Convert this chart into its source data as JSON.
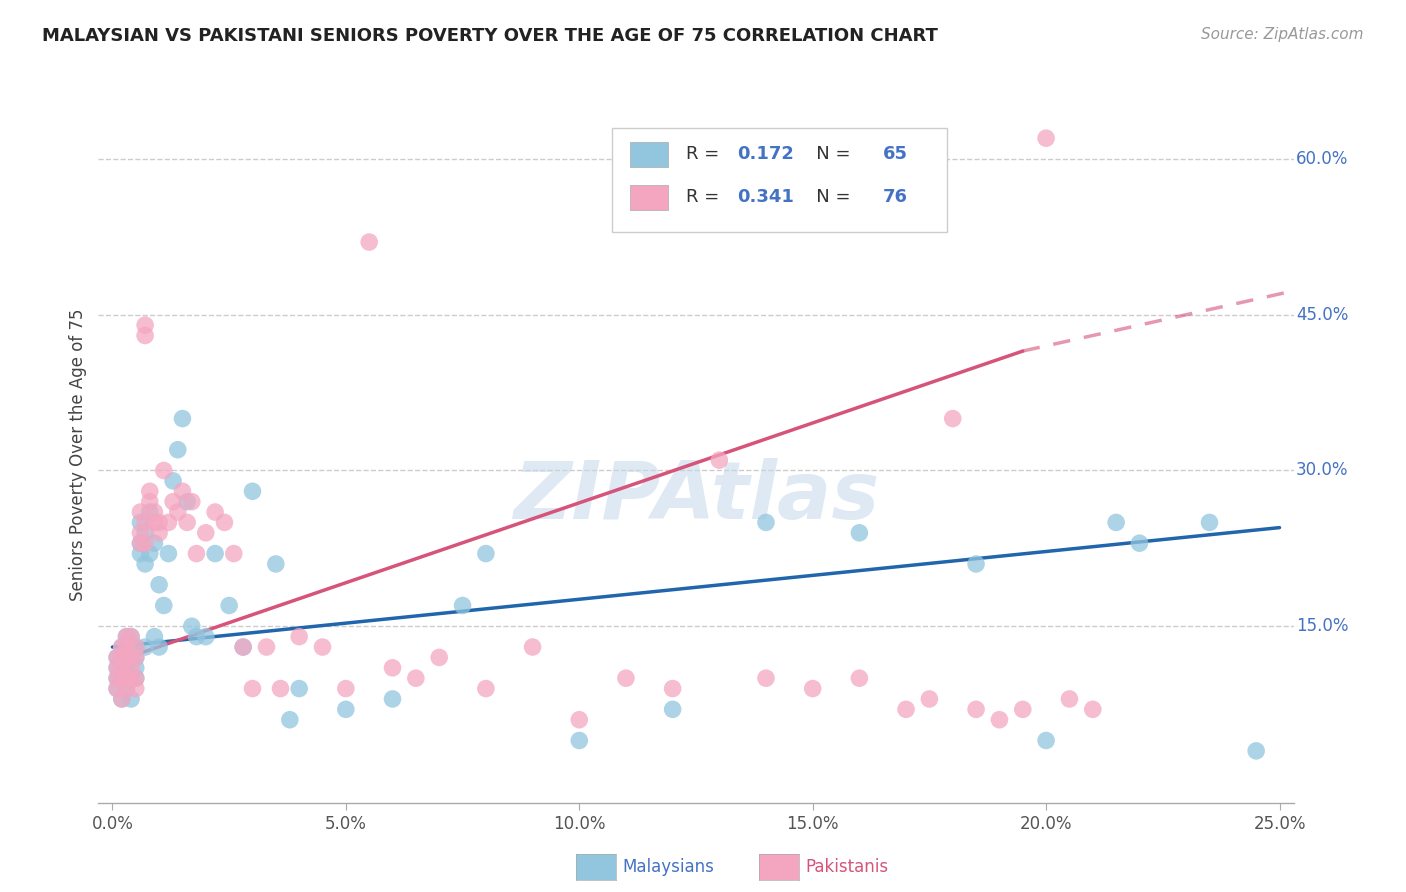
{
  "title": "MALAYSIAN VS PAKISTANI SENIORS POVERTY OVER THE AGE OF 75 CORRELATION CHART",
  "source": "Source: ZipAtlas.com",
  "ylabel": "Seniors Poverty Over the Age of 75",
  "xlim": [
    0.0,
    0.25
  ],
  "ylim": [
    -0.02,
    0.65
  ],
  "x_tick_vals": [
    0.0,
    0.05,
    0.1,
    0.15,
    0.2,
    0.25
  ],
  "x_tick_labels": [
    "0.0%",
    "5.0%",
    "10.0%",
    "15.0%",
    "20.0%",
    "25.0%"
  ],
  "y_tick_vals": [
    0.15,
    0.3,
    0.45,
    0.6
  ],
  "y_tick_labels": [
    "15.0%",
    "30.0%",
    "45.0%",
    "60.0%"
  ],
  "malaysian_R": "0.172",
  "malaysian_N": "65",
  "pakistani_R": "0.341",
  "pakistani_N": "76",
  "malaysian_color": "#92c5de",
  "pakistani_color": "#f4a6c0",
  "malaysian_line_color": "#2166ac",
  "pakistani_line_color": "#d6537a",
  "watermark": "ZIPAtlas",
  "background_color": "#ffffff",
  "legend_text_color": "#4472c4",
  "bottom_legend_mal_color": "#4472c4",
  "bottom_legend_pak_color": "#d6537a",
  "malaysian_x": [
    0.001,
    0.001,
    0.001,
    0.001,
    0.002,
    0.002,
    0.002,
    0.002,
    0.002,
    0.003,
    0.003,
    0.003,
    0.003,
    0.003,
    0.004,
    0.004,
    0.004,
    0.004,
    0.004,
    0.005,
    0.005,
    0.005,
    0.005,
    0.006,
    0.006,
    0.006,
    0.007,
    0.007,
    0.007,
    0.008,
    0.008,
    0.009,
    0.009,
    0.01,
    0.01,
    0.011,
    0.012,
    0.013,
    0.014,
    0.015,
    0.016,
    0.017,
    0.018,
    0.02,
    0.022,
    0.025,
    0.028,
    0.03,
    0.035,
    0.038,
    0.04,
    0.05,
    0.06,
    0.075,
    0.08,
    0.1,
    0.12,
    0.14,
    0.16,
    0.185,
    0.2,
    0.215,
    0.22,
    0.235,
    0.245
  ],
  "malaysian_y": [
    0.1,
    0.12,
    0.11,
    0.09,
    0.13,
    0.1,
    0.08,
    0.12,
    0.11,
    0.14,
    0.1,
    0.12,
    0.09,
    0.11,
    0.13,
    0.1,
    0.12,
    0.08,
    0.14,
    0.11,
    0.13,
    0.1,
    0.12,
    0.25,
    0.23,
    0.22,
    0.24,
    0.21,
    0.13,
    0.26,
    0.22,
    0.23,
    0.14,
    0.19,
    0.13,
    0.17,
    0.22,
    0.29,
    0.32,
    0.35,
    0.27,
    0.15,
    0.14,
    0.14,
    0.22,
    0.17,
    0.13,
    0.28,
    0.21,
    0.06,
    0.09,
    0.07,
    0.08,
    0.17,
    0.22,
    0.04,
    0.07,
    0.25,
    0.24,
    0.21,
    0.04,
    0.25,
    0.23,
    0.25,
    0.03
  ],
  "pakistani_x": [
    0.001,
    0.001,
    0.001,
    0.001,
    0.002,
    0.002,
    0.002,
    0.002,
    0.002,
    0.003,
    0.003,
    0.003,
    0.003,
    0.003,
    0.004,
    0.004,
    0.004,
    0.004,
    0.005,
    0.005,
    0.005,
    0.005,
    0.006,
    0.006,
    0.006,
    0.007,
    0.007,
    0.007,
    0.007,
    0.008,
    0.008,
    0.009,
    0.009,
    0.01,
    0.01,
    0.011,
    0.012,
    0.013,
    0.014,
    0.015,
    0.016,
    0.017,
    0.018,
    0.02,
    0.022,
    0.024,
    0.026,
    0.028,
    0.03,
    0.033,
    0.036,
    0.04,
    0.045,
    0.05,
    0.055,
    0.06,
    0.065,
    0.07,
    0.08,
    0.09,
    0.1,
    0.11,
    0.12,
    0.13,
    0.14,
    0.15,
    0.16,
    0.17,
    0.175,
    0.18,
    0.185,
    0.19,
    0.195,
    0.2,
    0.205,
    0.21
  ],
  "pakistani_y": [
    0.1,
    0.12,
    0.09,
    0.11,
    0.13,
    0.1,
    0.12,
    0.08,
    0.11,
    0.14,
    0.1,
    0.12,
    0.09,
    0.13,
    0.11,
    0.1,
    0.14,
    0.12,
    0.13,
    0.1,
    0.12,
    0.09,
    0.24,
    0.26,
    0.23,
    0.25,
    0.43,
    0.44,
    0.23,
    0.27,
    0.28,
    0.25,
    0.26,
    0.24,
    0.25,
    0.3,
    0.25,
    0.27,
    0.26,
    0.28,
    0.25,
    0.27,
    0.22,
    0.24,
    0.26,
    0.25,
    0.22,
    0.13,
    0.09,
    0.13,
    0.09,
    0.14,
    0.13,
    0.09,
    0.52,
    0.11,
    0.1,
    0.12,
    0.09,
    0.13,
    0.06,
    0.1,
    0.09,
    0.31,
    0.1,
    0.09,
    0.1,
    0.07,
    0.08,
    0.35,
    0.07,
    0.06,
    0.07,
    0.62,
    0.08,
    0.07
  ]
}
